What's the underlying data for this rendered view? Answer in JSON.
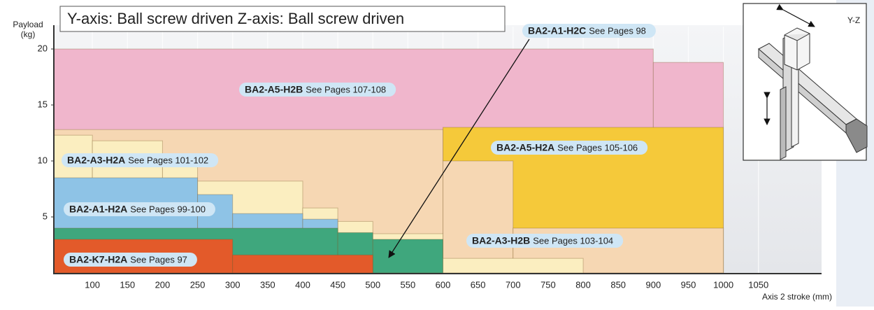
{
  "chart_data": {
    "type": "step_area",
    "title": "Y-axis: Ball screw driven  Z-axis: Ball screw driven",
    "y_label": [
      "Payload",
      "(kg)"
    ],
    "x_label": "Axis 2 stroke (mm)",
    "inset_label": "Y-Z",
    "xlim": [
      45,
      1140
    ],
    "ylim": [
      0,
      22
    ],
    "xticks": [
      100,
      150,
      200,
      250,
      300,
      350,
      400,
      450,
      500,
      550,
      600,
      650,
      700,
      750,
      800,
      850,
      900,
      950,
      1000,
      1050
    ],
    "yticks": [
      5,
      10,
      15,
      20
    ],
    "grid": true,
    "series": [
      {
        "name": "BA2-A5-H2B",
        "note": "See Pages 107-108",
        "color": "#f0b6cc",
        "bins": [
          45,
          900,
          1000
        ],
        "values": [
          20,
          18.8
        ]
      },
      {
        "name": "BA2-A5-H2A",
        "note": "See Pages 105-106",
        "color": "#f5c93a",
        "bins": [
          600,
          1000
        ],
        "values": [
          13
        ]
      },
      {
        "name": "BA2-A3-H2B",
        "note": "See Pages 103-104",
        "color": "#f6d7b3",
        "bins": [
          45,
          600,
          700,
          1000
        ],
        "values": [
          12.8,
          10,
          4
        ]
      },
      {
        "name": "BA2-A3-H2A",
        "note": "See Pages 101-102",
        "color": "#fbeec0",
        "bins": [
          45,
          100,
          200,
          250,
          400,
          450,
          500,
          600,
          800
        ],
        "values": [
          12.3,
          11.8,
          10.5,
          8.2,
          5.8,
          4.6,
          3.5,
          1.3
        ]
      },
      {
        "name": "BA2-A1-H2A",
        "note": "See Pages 99-100",
        "color": "#8ec3e6",
        "bins": [
          45,
          250,
          300,
          400,
          450
        ],
        "values": [
          8.5,
          7,
          5.3,
          4.8
        ]
      },
      {
        "name": "BA2-A1-H2C",
        "note": "See Pages 98",
        "color": "#3fa77d",
        "bins": [
          45,
          450,
          500,
          600
        ],
        "values": [
          4,
          3.6,
          3
        ]
      },
      {
        "name": "BA2-K7-H2A",
        "note": "See Pages 97",
        "color": "#e35a2a",
        "bins": [
          45,
          300,
          500
        ],
        "values": [
          3,
          1.6
        ]
      }
    ]
  }
}
